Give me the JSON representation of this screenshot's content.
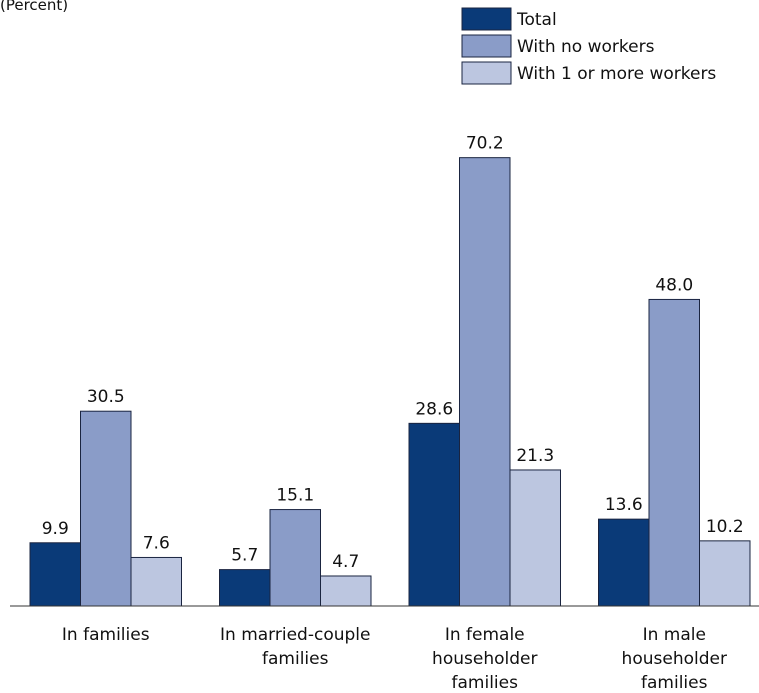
{
  "chart_data": {
    "type": "bar",
    "subtitle": "(Percent)",
    "categories": [
      "In families",
      "In married-couple\nfamilies",
      "In female\nhouseholder\nfamilies",
      "In male\nhouseholder\nfamilies"
    ],
    "series": [
      {
        "name": "Total",
        "color": "#0a3a78",
        "values": [
          9.9,
          5.7,
          28.6,
          13.6
        ],
        "value_labels": [
          "9.9",
          "5.7",
          "28.6",
          "13.6"
        ]
      },
      {
        "name": "With no workers",
        "color": "#8a9cc8",
        "values": [
          30.5,
          15.1,
          70.2,
          48.0
        ],
        "value_labels": [
          "30.5",
          "15.1",
          "70.2",
          "48.0"
        ]
      },
      {
        "name": "With 1 or more workers",
        "color": "#bcc6e0",
        "values": [
          7.6,
          4.7,
          21.3,
          10.2
        ],
        "value_labels": [
          "7.6",
          "4.7",
          "21.3",
          "10.2"
        ]
      }
    ],
    "ylim": [
      0,
      75
    ],
    "legend": "top-right"
  }
}
